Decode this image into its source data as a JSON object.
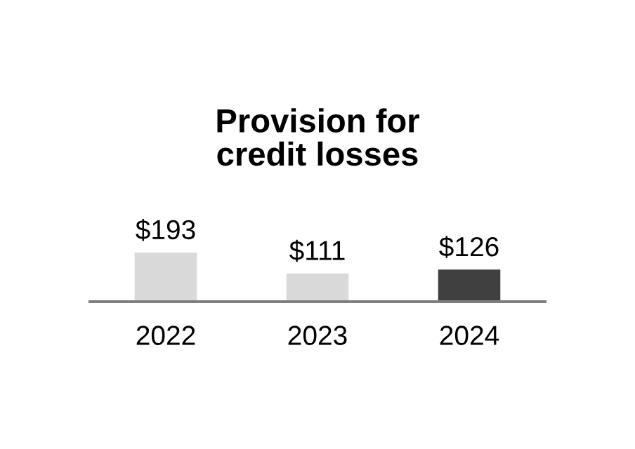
{
  "chart_data": {
    "type": "bar",
    "title": "Provision for\ncredit losses",
    "categories": [
      "2022",
      "2023",
      "2024"
    ],
    "values": [
      193,
      111,
      126
    ],
    "colors": [
      "#d9d9d9",
      "#d9d9d9",
      "#404040"
    ],
    "value_labels": [
      "$193",
      "$111",
      "$126"
    ],
    "grid": false,
    "legend": false
  }
}
